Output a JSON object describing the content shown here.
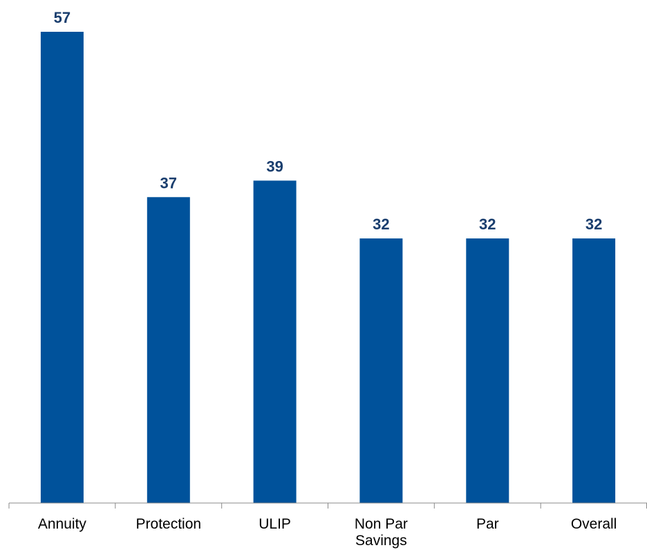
{
  "chart_data": {
    "type": "bar",
    "categories": [
      [
        "Annuity"
      ],
      [
        "Protection"
      ],
      [
        "ULIP"
      ],
      [
        "Non Par",
        "Savings"
      ],
      [
        "Par"
      ],
      [
        "Overall"
      ]
    ],
    "values": [
      57,
      37,
      39,
      32,
      32,
      32
    ],
    "data_labels": [
      "57",
      "37",
      "39",
      "32",
      "32",
      "32"
    ],
    "ylim": [
      0,
      57
    ],
    "grid": false,
    "legend": "none",
    "colors": {
      "bar": "#00529b",
      "value_label": "#1a3e6e",
      "axis": "#888888"
    }
  }
}
